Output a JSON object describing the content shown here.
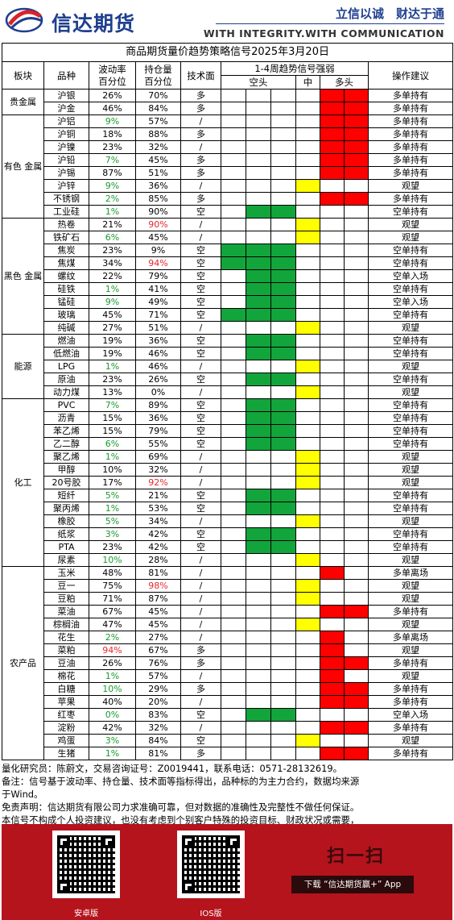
{
  "header": {
    "logo_text": "信达期货",
    "slogan": "立信以诚　财达于通",
    "motto": "WITH INTEGRITY.WITH COMMUNICATION"
  },
  "table": {
    "title": "商品期货量价趋势策略信号2025年3月20日",
    "headers": {
      "sector": "板块",
      "product": "品种",
      "vol": "波动率\n百分位",
      "oi": "持仓量\n百分位",
      "tech": "技术面",
      "signal": "1-4周趋势信号强弱",
      "short": "空头",
      "mid": "中",
      "long": "多头",
      "advice": "操作建议"
    },
    "sectors": [
      {
        "name": "贵金属",
        "rows": [
          {
            "product": "沪银",
            "vol": "26%",
            "vol_c": "",
            "oi": "70%",
            "oi_c": "",
            "tech": "多",
            "cells": [
              0,
              0,
              0,
              0,
              3,
              3
            ],
            "advice": "多单持有"
          },
          {
            "product": "沪金",
            "vol": "46%",
            "vol_c": "",
            "oi": "84%",
            "oi_c": "",
            "tech": "多",
            "cells": [
              0,
              0,
              0,
              0,
              3,
              3
            ],
            "advice": "多单持有"
          }
        ]
      },
      {
        "name": "有色\n金属",
        "rows": [
          {
            "product": "沪铝",
            "vol": "9%",
            "vol_c": "grn",
            "oi": "57%",
            "oi_c": "",
            "tech": "/",
            "cells": [
              0,
              0,
              0,
              0,
              3,
              3
            ],
            "advice": "多单持有"
          },
          {
            "product": "沪铜",
            "vol": "18%",
            "vol_c": "",
            "oi": "88%",
            "oi_c": "",
            "tech": "多",
            "cells": [
              0,
              0,
              0,
              0,
              3,
              3
            ],
            "advice": "多单持有"
          },
          {
            "product": "沪镍",
            "vol": "23%",
            "vol_c": "",
            "oi": "32%",
            "oi_c": "",
            "tech": "/",
            "cells": [
              0,
              0,
              0,
              0,
              3,
              3
            ],
            "advice": "多单持有"
          },
          {
            "product": "沪铅",
            "vol": "7%",
            "vol_c": "grn",
            "oi": "45%",
            "oi_c": "",
            "tech": "多",
            "cells": [
              0,
              0,
              0,
              0,
              3,
              3
            ],
            "advice": "多单持有"
          },
          {
            "product": "沪锡",
            "vol": "87%",
            "vol_c": "",
            "oi": "51%",
            "oi_c": "",
            "tech": "多",
            "cells": [
              0,
              0,
              0,
              0,
              3,
              3
            ],
            "advice": "多单持有"
          },
          {
            "product": "沪锌",
            "vol": "9%",
            "vol_c": "grn",
            "oi": "36%",
            "oi_c": "",
            "tech": "/",
            "cells": [
              0,
              0,
              0,
              2,
              0,
              0
            ],
            "advice": "观望"
          },
          {
            "product": "不锈钢",
            "vol": "2%",
            "vol_c": "grn",
            "oi": "85%",
            "oi_c": "",
            "tech": "多",
            "cells": [
              0,
              0,
              0,
              0,
              3,
              3
            ],
            "advice": "多单持有"
          },
          {
            "product": "工业硅",
            "vol": "1%",
            "vol_c": "grn",
            "oi": "90%",
            "oi_c": "",
            "tech": "空",
            "cells": [
              0,
              1,
              1,
              0,
              0,
              0
            ],
            "advice": "空单持有"
          }
        ]
      },
      {
        "name": "黑色\n金属",
        "rows": [
          {
            "product": "热卷",
            "vol": "21%",
            "vol_c": "",
            "oi": "90%",
            "oi_c": "red",
            "tech": "/",
            "cells": [
              0,
              0,
              0,
              2,
              0,
              0
            ],
            "advice": "观望"
          },
          {
            "product": "铁矿石",
            "vol": "6%",
            "vol_c": "grn",
            "oi": "45%",
            "oi_c": "",
            "tech": "/",
            "cells": [
              0,
              0,
              0,
              2,
              0,
              0
            ],
            "advice": "观望"
          },
          {
            "product": "焦炭",
            "vol": "23%",
            "vol_c": "",
            "oi": "9%",
            "oi_c": "",
            "tech": "空",
            "cells": [
              1,
              1,
              1,
              0,
              0,
              0
            ],
            "advice": "空单持有"
          },
          {
            "product": "焦煤",
            "vol": "34%",
            "vol_c": "",
            "oi": "94%",
            "oi_c": "red",
            "tech": "空",
            "cells": [
              1,
              1,
              1,
              0,
              0,
              0
            ],
            "advice": "空单持有"
          },
          {
            "product": "螺纹",
            "vol": "22%",
            "vol_c": "",
            "oi": "79%",
            "oi_c": "",
            "tech": "空",
            "cells": [
              0,
              1,
              1,
              0,
              0,
              0
            ],
            "advice": "空单入场"
          },
          {
            "product": "硅铁",
            "vol": "1%",
            "vol_c": "grn",
            "oi": "41%",
            "oi_c": "",
            "tech": "空",
            "cells": [
              0,
              1,
              1,
              0,
              0,
              0
            ],
            "advice": "空单持有"
          },
          {
            "product": "锰硅",
            "vol": "9%",
            "vol_c": "grn",
            "oi": "49%",
            "oi_c": "",
            "tech": "空",
            "cells": [
              0,
              1,
              1,
              0,
              0,
              0
            ],
            "advice": "空单入场"
          },
          {
            "product": "玻璃",
            "vol": "45%",
            "vol_c": "",
            "oi": "71%",
            "oi_c": "",
            "tech": "空",
            "cells": [
              1,
              1,
              1,
              0,
              0,
              0
            ],
            "advice": "空单持有"
          },
          {
            "product": "纯碱",
            "vol": "27%",
            "vol_c": "",
            "oi": "51%",
            "oi_c": "",
            "tech": "/",
            "cells": [
              0,
              0,
              0,
              2,
              0,
              0
            ],
            "advice": "观望"
          }
        ]
      },
      {
        "name": "能源",
        "rows": [
          {
            "product": "燃油",
            "vol": "19%",
            "vol_c": "",
            "oi": "36%",
            "oi_c": "",
            "tech": "空",
            "cells": [
              0,
              1,
              1,
              0,
              0,
              0
            ],
            "advice": "空单持有"
          },
          {
            "product": "低燃油",
            "vol": "19%",
            "vol_c": "",
            "oi": "46%",
            "oi_c": "",
            "tech": "空",
            "cells": [
              0,
              1,
              1,
              0,
              0,
              0
            ],
            "advice": "空单持有"
          },
          {
            "product": "LPG",
            "vol": "1%",
            "vol_c": "grn",
            "oi": "46%",
            "oi_c": "",
            "tech": "/",
            "cells": [
              0,
              0,
              0,
              2,
              0,
              0
            ],
            "advice": "观望"
          },
          {
            "product": "原油",
            "vol": "23%",
            "vol_c": "",
            "oi": "26%",
            "oi_c": "",
            "tech": "空",
            "cells": [
              0,
              1,
              1,
              0,
              0,
              0
            ],
            "advice": "空单持有"
          },
          {
            "product": "动力煤",
            "vol": "13%",
            "vol_c": "",
            "oi": "0%",
            "oi_c": "",
            "tech": "/",
            "cells": [
              0,
              0,
              0,
              2,
              0,
              0
            ],
            "advice": "观望"
          }
        ]
      },
      {
        "name": "化工",
        "rows": [
          {
            "product": "PVC",
            "vol": "7%",
            "vol_c": "grn",
            "oi": "89%",
            "oi_c": "",
            "tech": "空",
            "cells": [
              0,
              1,
              1,
              0,
              0,
              0
            ],
            "advice": "空单持有"
          },
          {
            "product": "沥青",
            "vol": "15%",
            "vol_c": "",
            "oi": "36%",
            "oi_c": "",
            "tech": "空",
            "cells": [
              0,
              1,
              1,
              0,
              0,
              0
            ],
            "advice": "空单持有"
          },
          {
            "product": "苯乙烯",
            "vol": "15%",
            "vol_c": "",
            "oi": "79%",
            "oi_c": "",
            "tech": "空",
            "cells": [
              0,
              1,
              1,
              0,
              0,
              0
            ],
            "advice": "空单持有"
          },
          {
            "product": "乙二醇",
            "vol": "6%",
            "vol_c": "grn",
            "oi": "55%",
            "oi_c": "",
            "tech": "空",
            "cells": [
              0,
              1,
              1,
              0,
              0,
              0
            ],
            "advice": "空单持有"
          },
          {
            "product": "聚乙烯",
            "vol": "1%",
            "vol_c": "grn",
            "oi": "69%",
            "oi_c": "",
            "tech": "/",
            "cells": [
              0,
              0,
              0,
              2,
              0,
              0
            ],
            "advice": "观望"
          },
          {
            "product": "甲醇",
            "vol": "10%",
            "vol_c": "",
            "oi": "32%",
            "oi_c": "",
            "tech": "/",
            "cells": [
              0,
              0,
              0,
              2,
              0,
              0
            ],
            "advice": "观望"
          },
          {
            "product": "20号胶",
            "vol": "17%",
            "vol_c": "",
            "oi": "92%",
            "oi_c": "red",
            "tech": "/",
            "cells": [
              0,
              0,
              0,
              2,
              0,
              0
            ],
            "advice": "观望"
          },
          {
            "product": "短纤",
            "vol": "5%",
            "vol_c": "grn",
            "oi": "21%",
            "oi_c": "",
            "tech": "空",
            "cells": [
              0,
              1,
              1,
              0,
              0,
              0
            ],
            "advice": "空单持有"
          },
          {
            "product": "聚丙烯",
            "vol": "1%",
            "vol_c": "grn",
            "oi": "53%",
            "oi_c": "",
            "tech": "空",
            "cells": [
              0,
              1,
              1,
              0,
              0,
              0
            ],
            "advice": "空单持有"
          },
          {
            "product": "橡胶",
            "vol": "5%",
            "vol_c": "grn",
            "oi": "34%",
            "oi_c": "",
            "tech": "/",
            "cells": [
              0,
              0,
              0,
              2,
              0,
              0
            ],
            "advice": "观望"
          },
          {
            "product": "纸浆",
            "vol": "3%",
            "vol_c": "grn",
            "oi": "42%",
            "oi_c": "",
            "tech": "空",
            "cells": [
              0,
              1,
              1,
              0,
              0,
              0
            ],
            "advice": "空单持有"
          },
          {
            "product": "PTA",
            "vol": "23%",
            "vol_c": "",
            "oi": "42%",
            "oi_c": "",
            "tech": "空",
            "cells": [
              0,
              1,
              1,
              0,
              0,
              0
            ],
            "advice": "空单持有"
          },
          {
            "product": "尿素",
            "vol": "10%",
            "vol_c": "grn",
            "oi": "28%",
            "oi_c": "",
            "tech": "/",
            "cells": [
              0,
              0,
              0,
              2,
              0,
              0
            ],
            "advice": "观望"
          }
        ]
      },
      {
        "name": "农产品",
        "rows": [
          {
            "product": "玉米",
            "vol": "48%",
            "vol_c": "",
            "oi": "81%",
            "oi_c": "",
            "tech": "/",
            "cells": [
              0,
              0,
              0,
              0,
              3,
              0
            ],
            "advice": "多单离场"
          },
          {
            "product": "豆一",
            "vol": "75%",
            "vol_c": "",
            "oi": "98%",
            "oi_c": "red",
            "tech": "/",
            "cells": [
              0,
              0,
              0,
              2,
              0,
              0
            ],
            "advice": "观望"
          },
          {
            "product": "豆粕",
            "vol": "71%",
            "vol_c": "",
            "oi": "87%",
            "oi_c": "",
            "tech": "/",
            "cells": [
              0,
              0,
              0,
              2,
              0,
              0
            ],
            "advice": "观望"
          },
          {
            "product": "菜油",
            "vol": "67%",
            "vol_c": "",
            "oi": "45%",
            "oi_c": "",
            "tech": "/",
            "cells": [
              0,
              0,
              0,
              0,
              3,
              3
            ],
            "advice": "多单持有"
          },
          {
            "product": "棕榈油",
            "vol": "47%",
            "vol_c": "",
            "oi": "45%",
            "oi_c": "",
            "tech": "/",
            "cells": [
              0,
              0,
              0,
              2,
              0,
              0
            ],
            "advice": "观望"
          },
          {
            "product": "花生",
            "vol": "2%",
            "vol_c": "grn",
            "oi": "27%",
            "oi_c": "",
            "tech": "/",
            "cells": [
              0,
              0,
              0,
              0,
              3,
              0
            ],
            "advice": "多单离场"
          },
          {
            "product": "菜粕",
            "vol": "94%",
            "vol_c": "red",
            "oi": "67%",
            "oi_c": "",
            "tech": "多",
            "cells": [
              0,
              0,
              0,
              0,
              3,
              0
            ],
            "advice": "观望"
          },
          {
            "product": "豆油",
            "vol": "26%",
            "vol_c": "",
            "oi": "76%",
            "oi_c": "",
            "tech": "多",
            "cells": [
              0,
              0,
              0,
              0,
              3,
              3
            ],
            "advice": "多单持有"
          },
          {
            "product": "棉花",
            "vol": "1%",
            "vol_c": "grn",
            "oi": "57%",
            "oi_c": "",
            "tech": "/",
            "cells": [
              0,
              0,
              0,
              0,
              3,
              0
            ],
            "advice": "观望"
          },
          {
            "product": "白糖",
            "vol": "10%",
            "vol_c": "grn",
            "oi": "29%",
            "oi_c": "",
            "tech": "多",
            "cells": [
              0,
              0,
              0,
              0,
              3,
              3
            ],
            "advice": "多单持有"
          },
          {
            "product": "苹果",
            "vol": "40%",
            "vol_c": "",
            "oi": "20%",
            "oi_c": "",
            "tech": "/",
            "cells": [
              0,
              0,
              0,
              0,
              3,
              3
            ],
            "advice": "多单持有"
          },
          {
            "product": "红枣",
            "vol": "0%",
            "vol_c": "grn",
            "oi": "83%",
            "oi_c": "",
            "tech": "空",
            "cells": [
              0,
              1,
              1,
              0,
              0,
              0
            ],
            "advice": "空单入场"
          },
          {
            "product": "淀粉",
            "vol": "42%",
            "vol_c": "",
            "oi": "32%",
            "oi_c": "",
            "tech": "/",
            "cells": [
              0,
              0,
              0,
              0,
              3,
              3
            ],
            "advice": "多单持有"
          },
          {
            "product": "鸡蛋",
            "vol": "3%",
            "vol_c": "grn",
            "oi": "84%",
            "oi_c": "",
            "tech": "空",
            "cells": [
              0,
              0,
              0,
              2,
              0,
              0
            ],
            "advice": "观望"
          },
          {
            "product": "生猪",
            "vol": "1%",
            "vol_c": "grn",
            "oi": "81%",
            "oi_c": "",
            "tech": "多",
            "cells": [
              0,
              0,
              0,
              0,
              3,
              3
            ],
            "advice": "多单持有"
          }
        ]
      }
    ]
  },
  "signal_colors": {
    "green": "#12a53c",
    "yellow": "#ffff00",
    "red": "#ff0000"
  },
  "footer": {
    "researcher": "量化研究员：陈蔚文，交易咨询证号：Z0019441，联系电话：0571-28132619。",
    "note1": "备注：信号基于波动率、持仓量、技术面等指标得出，品种标的为主力合约，数据均来源",
    "note2": "于Wind。",
    "disclaimer": "免责声明：信达期货有限公司力求准确可靠，但对数据的准确性及完整性不做任何保证。",
    "disclaimer2": "本信号不构成个人投资建议，也没有考虑到个别客户特殊的投资目标、财政状况或需要，"
  },
  "banner": {
    "android_label": "安卓版",
    "ios_label": "IOS版",
    "scan_text": "扫一扫",
    "download_text": "下载 “信达期货赢+” App"
  }
}
